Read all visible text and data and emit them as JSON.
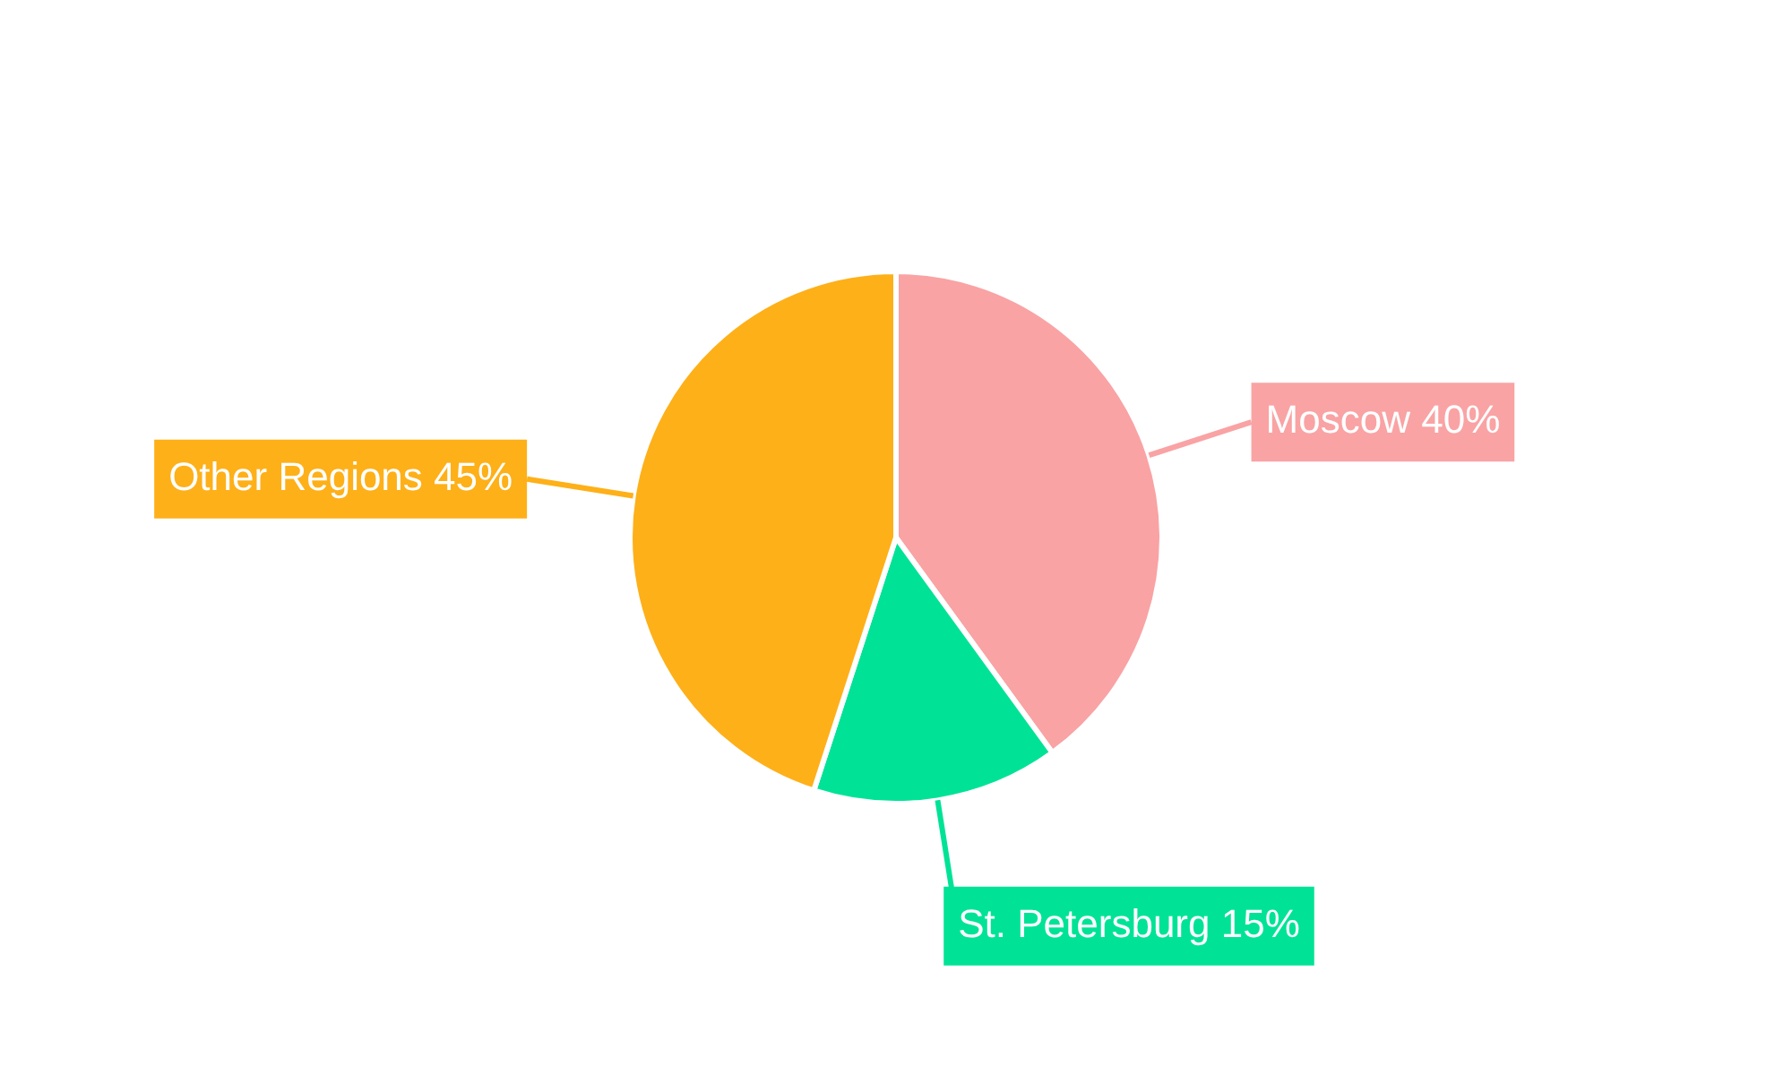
{
  "chart_data": {
    "type": "pie",
    "categories": [
      "Moscow",
      "St. Petersburg",
      "Other Regions"
    ],
    "values": [
      40,
      15,
      45
    ],
    "value_labels": [
      "40%",
      "15%",
      "45%"
    ],
    "colors": [
      "#f9a3a4",
      "#00e396",
      "#feb019"
    ],
    "legend": false
  }
}
